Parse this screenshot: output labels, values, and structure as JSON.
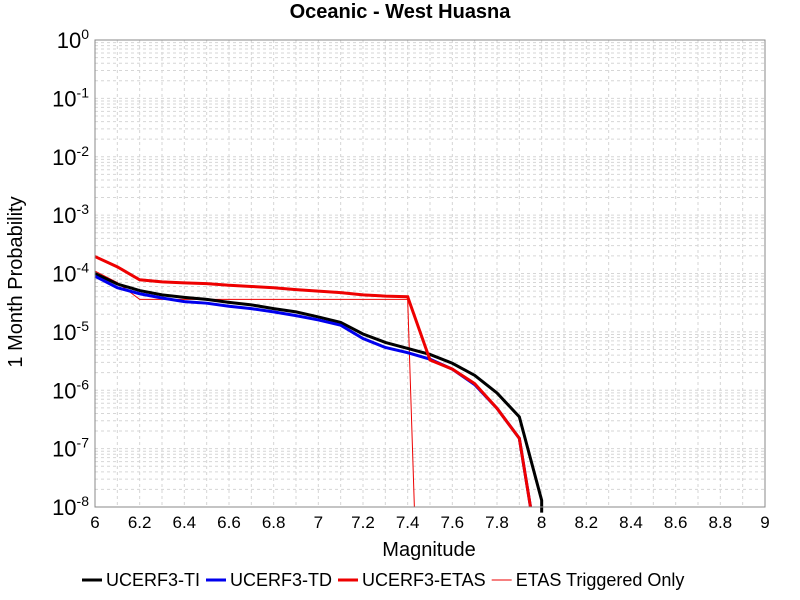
{
  "chart_data": {
    "type": "line",
    "title": "Oceanic - West Huasna",
    "xlabel": "Magnitude",
    "ylabel": "1 Month Probability",
    "xlim": [
      6,
      9
    ],
    "ylim": [
      1e-08,
      1
    ],
    "yscale": "log",
    "grid": true,
    "legend_position": "bottom",
    "x_ticks": [
      "6",
      "6.2",
      "6.4",
      "6.6",
      "6.8",
      "7",
      "7.2",
      "7.4",
      "7.6",
      "7.8",
      "8",
      "8.2",
      "8.4",
      "8.6",
      "8.8",
      "9"
    ],
    "y_ticks": [
      {
        "base": "10",
        "exp": "0",
        "value": 1
      },
      {
        "base": "10",
        "exp": "-1",
        "value": 0.1
      },
      {
        "base": "10",
        "exp": "-2",
        "value": 0.01
      },
      {
        "base": "10",
        "exp": "-3",
        "value": 0.001
      },
      {
        "base": "10",
        "exp": "-4",
        "value": 0.0001
      },
      {
        "base": "10",
        "exp": "-5",
        "value": 1e-05
      },
      {
        "base": "10",
        "exp": "-6",
        "value": 1e-06
      },
      {
        "base": "10",
        "exp": "-7",
        "value": 1e-07
      },
      {
        "base": "10",
        "exp": "-8",
        "value": 1e-08
      }
    ],
    "series": [
      {
        "name": "UCERF3-TI",
        "color": "#000000",
        "width": 3,
        "points": [
          [
            6.0,
            0.0001
          ],
          [
            6.1,
            6.6e-05
          ],
          [
            6.2,
            5.1e-05
          ],
          [
            6.3,
            4.3e-05
          ],
          [
            6.4,
            3.9e-05
          ],
          [
            6.5,
            3.6e-05
          ],
          [
            6.6,
            3.2e-05
          ],
          [
            6.7,
            2.9e-05
          ],
          [
            6.8,
            2.5e-05
          ],
          [
            6.9,
            2.2e-05
          ],
          [
            7.0,
            1.8e-05
          ],
          [
            7.1,
            1.45e-05
          ],
          [
            7.2,
            9.2e-06
          ],
          [
            7.3,
            6.6e-06
          ],
          [
            7.4,
            5.2e-06
          ],
          [
            7.5,
            4.1e-06
          ],
          [
            7.6,
            2.9e-06
          ],
          [
            7.7,
            1.8e-06
          ],
          [
            7.8,
            9e-07
          ],
          [
            7.9,
            3.5e-07
          ],
          [
            8.0,
            1.3e-08
          ],
          [
            8.0,
            8e-09
          ]
        ]
      },
      {
        "name": "UCERF3-TD",
        "color": "#0000ee",
        "width": 3,
        "points": [
          [
            6.0,
            9e-05
          ],
          [
            6.1,
            5.7e-05
          ],
          [
            6.2,
            4.5e-05
          ],
          [
            6.3,
            3.8e-05
          ],
          [
            6.4,
            3.3e-05
          ],
          [
            6.5,
            3.1e-05
          ],
          [
            6.6,
            2.75e-05
          ],
          [
            6.7,
            2.5e-05
          ],
          [
            6.8,
            2.2e-05
          ],
          [
            6.9,
            1.9e-05
          ],
          [
            7.0,
            1.6e-05
          ],
          [
            7.1,
            1.3e-05
          ],
          [
            7.2,
            7.7e-06
          ],
          [
            7.3,
            5.4e-06
          ],
          [
            7.4,
            4.4e-06
          ],
          [
            7.5,
            3.4e-06
          ],
          [
            7.6,
            2.3e-06
          ],
          [
            7.7,
            1.25e-06
          ],
          [
            7.8,
            4.9e-07
          ],
          [
            7.9,
            1.5e-07
          ],
          [
            7.95,
            1e-08
          ]
        ]
      },
      {
        "name": "UCERF3-ETAS",
        "color": "#ee0000",
        "width": 3,
        "points": [
          [
            6.0,
            0.000195
          ],
          [
            6.1,
            0.00013
          ],
          [
            6.2,
            7.8e-05
          ],
          [
            6.3,
            7.2e-05
          ],
          [
            6.4,
            6.9e-05
          ],
          [
            6.5,
            6.7e-05
          ],
          [
            6.6,
            6.3e-05
          ],
          [
            6.7,
            6e-05
          ],
          [
            6.8,
            5.7e-05
          ],
          [
            6.9,
            5.3e-05
          ],
          [
            7.0,
            5e-05
          ],
          [
            7.1,
            4.7e-05
          ],
          [
            7.2,
            4.3e-05
          ],
          [
            7.3,
            4.1e-05
          ],
          [
            7.4,
            4e-05
          ],
          [
            7.5,
            3.3e-06
          ],
          [
            7.6,
            2.3e-06
          ],
          [
            7.7,
            1.3e-06
          ],
          [
            7.8,
            4.9e-07
          ],
          [
            7.9,
            1.5e-07
          ],
          [
            7.95,
            1e-08
          ]
        ]
      },
      {
        "name": "ETAS Triggered Only",
        "color": "#ee0000",
        "width": 1,
        "points": [
          [
            6.0,
            0.00011
          ],
          [
            6.1,
            7e-05
          ],
          [
            6.2,
            3.6e-05
          ],
          [
            6.3,
            3.6e-05
          ],
          [
            6.4,
            3.6e-05
          ],
          [
            6.5,
            3.6e-05
          ],
          [
            6.6,
            3.6e-05
          ],
          [
            6.7,
            3.6e-05
          ],
          [
            6.8,
            3.6e-05
          ],
          [
            6.9,
            3.6e-05
          ],
          [
            7.0,
            3.6e-05
          ],
          [
            7.1,
            3.6e-05
          ],
          [
            7.2,
            3.6e-05
          ],
          [
            7.3,
            3.6e-05
          ],
          [
            7.4,
            3.6e-05
          ],
          [
            7.43,
            1e-08
          ]
        ]
      }
    ]
  }
}
